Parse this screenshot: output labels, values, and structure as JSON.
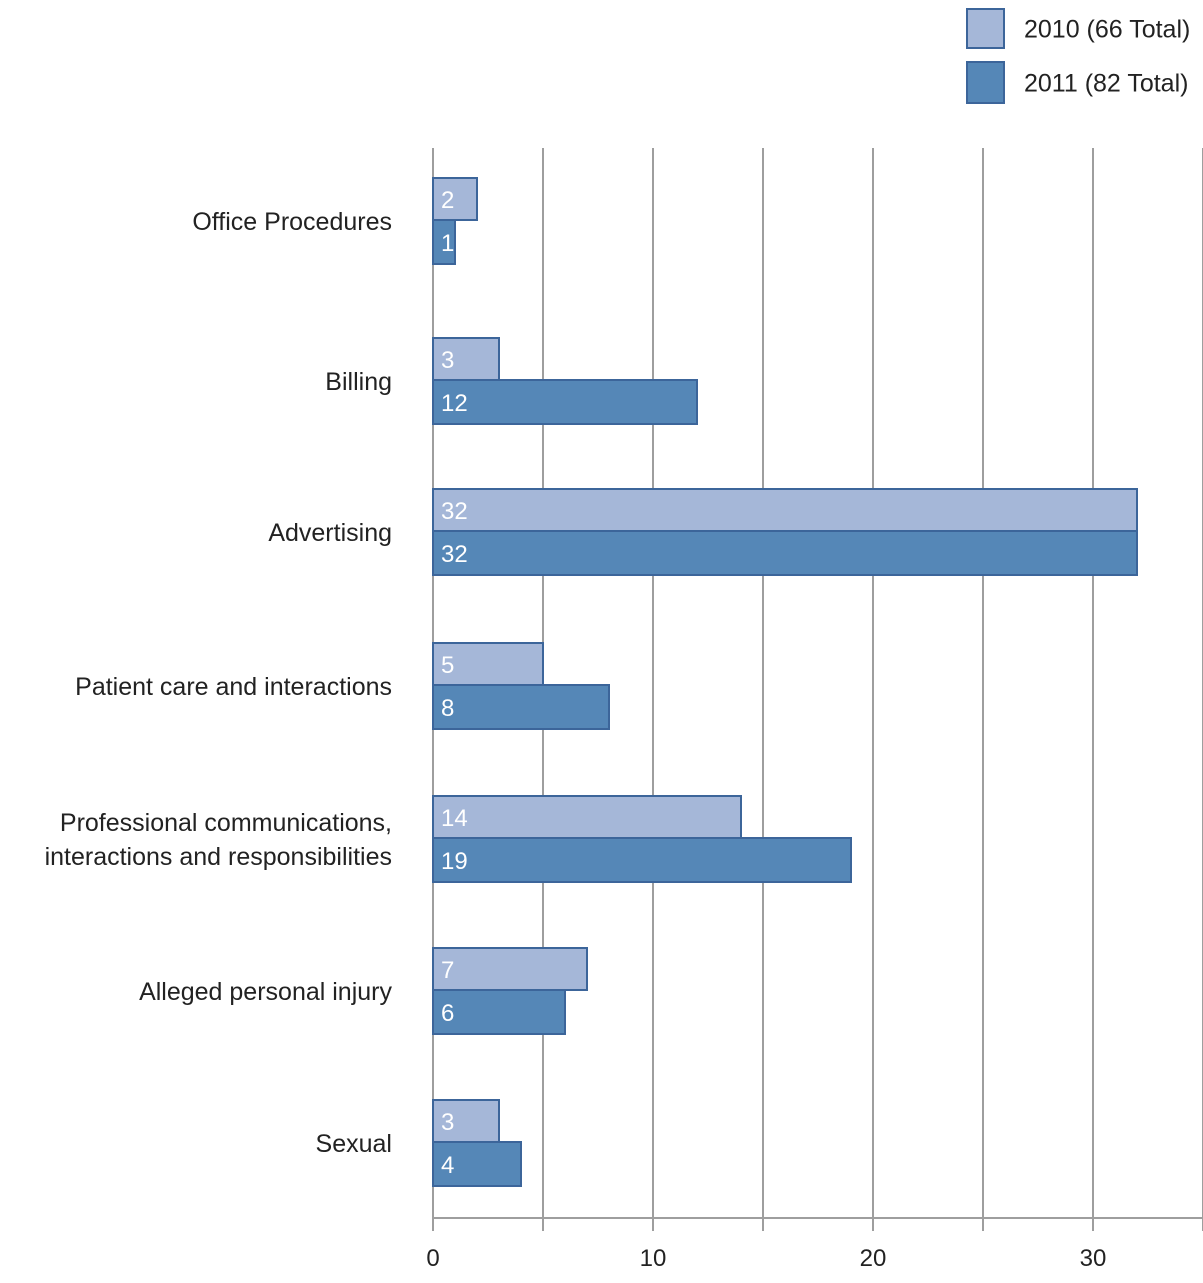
{
  "chart_data": {
    "type": "bar",
    "orientation": "horizontal",
    "title": "",
    "xlabel": "",
    "ylabel": "",
    "categories": [
      "Office Procedures",
      "Billing",
      "Advertising",
      "Patient care and interactions",
      "Professional communications, interactions and responsibilities",
      "Alleged personal injury",
      "Sexual"
    ],
    "category_lines": [
      [
        "Office Procedures"
      ],
      [
        "Billing"
      ],
      [
        "Advertising"
      ],
      [
        "Patient care and interactions"
      ],
      [
        "Professional communications,",
        "interactions and responsibilities"
      ],
      [
        "Alleged personal injury"
      ],
      [
        "Sexual"
      ]
    ],
    "series": [
      {
        "name": "2010 (66 Total)",
        "values": [
          2,
          3,
          32,
          5,
          14,
          7,
          3
        ],
        "color": "#a5b7d8"
      },
      {
        "name": "2011 (82 Total)",
        "values": [
          1,
          12,
          32,
          8,
          19,
          6,
          4
        ],
        "color": "#5587b7"
      }
    ],
    "xlim": [
      0,
      35
    ],
    "x_ticks": [
      0,
      10,
      20,
      30
    ],
    "x_minor_ticks": [
      5,
      15,
      25,
      35
    ],
    "grid": true,
    "data_labels": true,
    "legend_position": "top-right",
    "colors": {
      "edge": "#3c659a",
      "grid": "#9e9e9e",
      "label_text": "#ffffff",
      "text": "#222222"
    }
  }
}
